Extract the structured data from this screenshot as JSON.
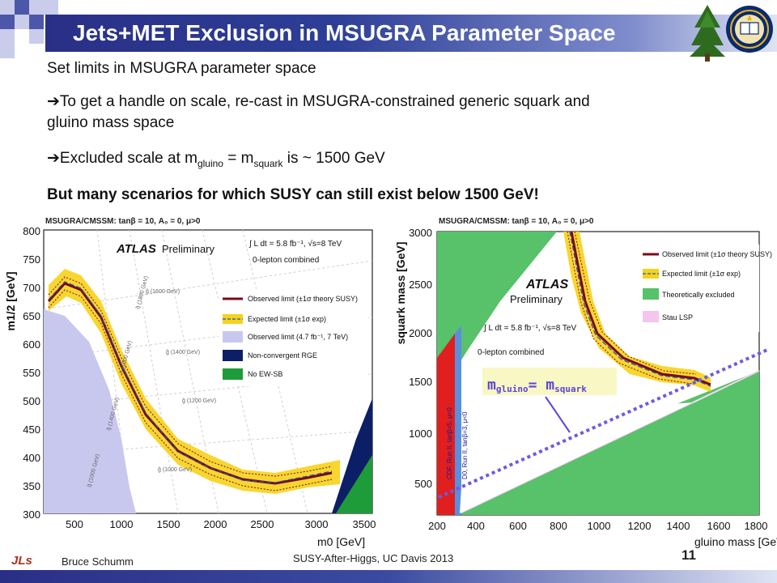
{
  "slide": {
    "title": "Jets+MET Exclusion in MSUGRA Parameter Space",
    "line1": "Set limits in MSUGRA parameter space",
    "arrow_glyph": "➔",
    "line2": "To get a handle on scale, re-cast in MSUGRA-constrained generic squark and",
    "line2b": "gluino mass space",
    "line3_pre": "Excluded scale at m",
    "line3_sub1": "gluino",
    "line3_mid": " = m",
    "line3_sub2": "squark",
    "line3_post": " is ~ 1500 GeV",
    "line4": "But many scenarios for which SUSY can still exist below 1500 GeV!"
  },
  "left_plot": {
    "header": "MSUGRA/CMSSM: tanβ = 10, A₀ = 0, μ>0",
    "atlas": "ATLAS",
    "prelim": "Preliminary",
    "lumi": "∫ L dt = 5.8 fb⁻¹, √s=8 TeV",
    "channel": "0-lepton combined",
    "legend": [
      {
        "label": "Observed limit (±1σ theory SUSY)",
        "color": "#7a0a1a"
      },
      {
        "label": "Expected limit (±1σ exp)",
        "color": "#f7d21a"
      },
      {
        "label": "Observed limit (4.7 fb⁻¹, 7 TeV)",
        "color": "#c8c8ef"
      },
      {
        "label": "Non-convergent RGE",
        "color": "#0c1f66"
      },
      {
        "label": "No EW-SB",
        "color": "#1e9c3a"
      }
    ],
    "ylabel": "m1/2 [GeV]",
    "xlabel": "m0 [GeV]",
    "x_ticks": [
      "500",
      "1000",
      "1500",
      "2000",
      "2500",
      "3000",
      "3500"
    ],
    "y_ticks": [
      "800",
      "750",
      "700",
      "650",
      "600",
      "550",
      "500",
      "450",
      "400",
      "350",
      "300"
    ],
    "contour_labels": [
      "g̃ (1600 GeV)",
      "g̃ (1400 GeV)",
      "g̃ (1200 GeV)",
      "g̃ (1000 GeV)",
      "q̃ (1800 GeV)",
      "q̃ (1600 GeV)",
      "q̃ (1400 GeV)",
      "q̃ (1000 GeV)"
    ]
  },
  "right_plot": {
    "header": "MSUGRA/CMSSM: tanβ = 10, A₀ = 0, μ>0",
    "atlas": "ATLAS",
    "prelim": "Preliminary",
    "lumi": "∫ L dt = 5.8 fb⁻¹, √s=8 TeV",
    "channel": "0-lepton combined",
    "legend": [
      {
        "label": "Observed limit (±1σ theory SUSY)",
        "color": "#7a0a1a"
      },
      {
        "label": "Expected limit (±1σ exp)",
        "color": "#f7d21a"
      },
      {
        "label": "Theoretically excluded",
        "color": "#57c26a"
      },
      {
        "label": "Stau LSP",
        "color": "#f4c6ee"
      }
    ],
    "ylabel": "squark mass [GeV]",
    "xlabel": "gluino mass [GeV]",
    "x_ticks": [
      "200",
      "400",
      "600",
      "800",
      "1000",
      "1200",
      "1400",
      "1600",
      "1800"
    ],
    "y_ticks": [
      "3000",
      "2500",
      "2000",
      "1500",
      "1000",
      "500"
    ],
    "cdf_label": "CDF, Run II, tanβ=5, μ<0",
    "d0_label": "D0, Run II, tanβ=3, μ<0",
    "annot_pre": "m",
    "annot_sub1": "gluino",
    "annot_mid": "= m",
    "annot_sub2": "squark"
  },
  "footer": {
    "author": "Bruce Schumm",
    "event": "SUSY-After-Higgs, UC Davis 2013",
    "page": "11",
    "logo_text": "JLs"
  }
}
